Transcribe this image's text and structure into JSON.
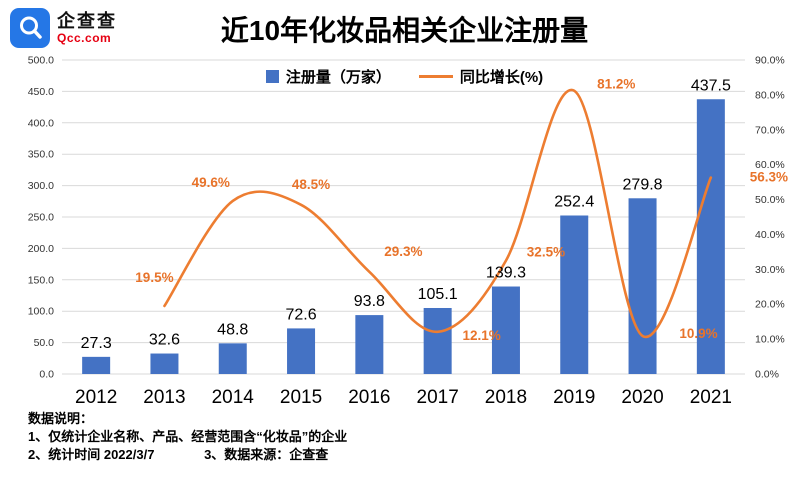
{
  "logo": {
    "name": "企查查",
    "domain": "Qcc.com"
  },
  "title": "近10年化妆品相关企业注册量",
  "legend": {
    "bar_label": "注册量（万家）",
    "line_label": "同比增长(%)"
  },
  "colors": {
    "bar": "#4472C4",
    "line": "#ED7D31",
    "line_label": "#E8732A",
    "grid": "#D9D9D9",
    "axis_text": "#333333",
    "logo_blue": "#2577E6",
    "logo_red": "#E60012"
  },
  "chart_data": {
    "type": "combo",
    "title": "近10年化妆品相关企业注册量",
    "categories": [
      "2012",
      "2013",
      "2014",
      "2015",
      "2016",
      "2017",
      "2018",
      "2019",
      "2020",
      "2021"
    ],
    "series": [
      {
        "name": "注册量（万家）",
        "type": "bar",
        "axis": "left",
        "color": "#4472C4",
        "values": [
          27.3,
          32.6,
          48.8,
          72.6,
          93.8,
          105.1,
          139.3,
          252.4,
          279.8,
          437.5
        ],
        "labels": [
          "27.3",
          "32.6",
          "48.8",
          "72.6",
          "93.8",
          "105.1",
          "139.3",
          "252.4",
          "279.8",
          "437.5"
        ]
      },
      {
        "name": "同比增长(%)",
        "type": "line",
        "axis": "right",
        "color": "#ED7D31",
        "values": [
          null,
          19.5,
          49.6,
          48.5,
          29.3,
          12.1,
          32.5,
          81.2,
          10.9,
          56.3
        ],
        "labels": [
          null,
          "19.5%",
          "49.6%",
          "48.5%",
          "29.3%",
          "12.1%",
          "32.5%",
          "81.2%",
          "10.9%",
          "56.3%"
        ]
      }
    ],
    "left_axis": {
      "min": 0,
      "max": 500,
      "step": 50,
      "tick_labels": [
        "500.0",
        "450.0",
        "400.0",
        "350.0",
        "300.0",
        "250.0",
        "200.0",
        "150.0",
        "100.0",
        "50.0",
        "0.0"
      ]
    },
    "right_axis": {
      "min": 0,
      "max": 90,
      "step": 10,
      "tick_labels": [
        "90.0%",
        "80.0%",
        "70.0%",
        "60.0%",
        "50.0%",
        "40.0%",
        "30.0%",
        "20.0%",
        "10.0%",
        "0.0%"
      ]
    },
    "grid": true,
    "legend_position": "top-center",
    "line_label_offsets": [
      null,
      [
        -10,
        -24
      ],
      [
        -22,
        -14
      ],
      [
        10,
        -16
      ],
      [
        34,
        -16
      ],
      [
        44,
        8
      ],
      [
        40,
        -4
      ],
      [
        42,
        -2
      ],
      [
        56,
        2
      ],
      [
        58,
        4
      ]
    ]
  },
  "footer": {
    "title": "数据说明：",
    "note1": "1、仅统计企业名称、产品、经营范围含“化妆品”的企业",
    "note2": "2、统计时间 2022/3/7",
    "note3": "3、数据来源：企查查"
  }
}
